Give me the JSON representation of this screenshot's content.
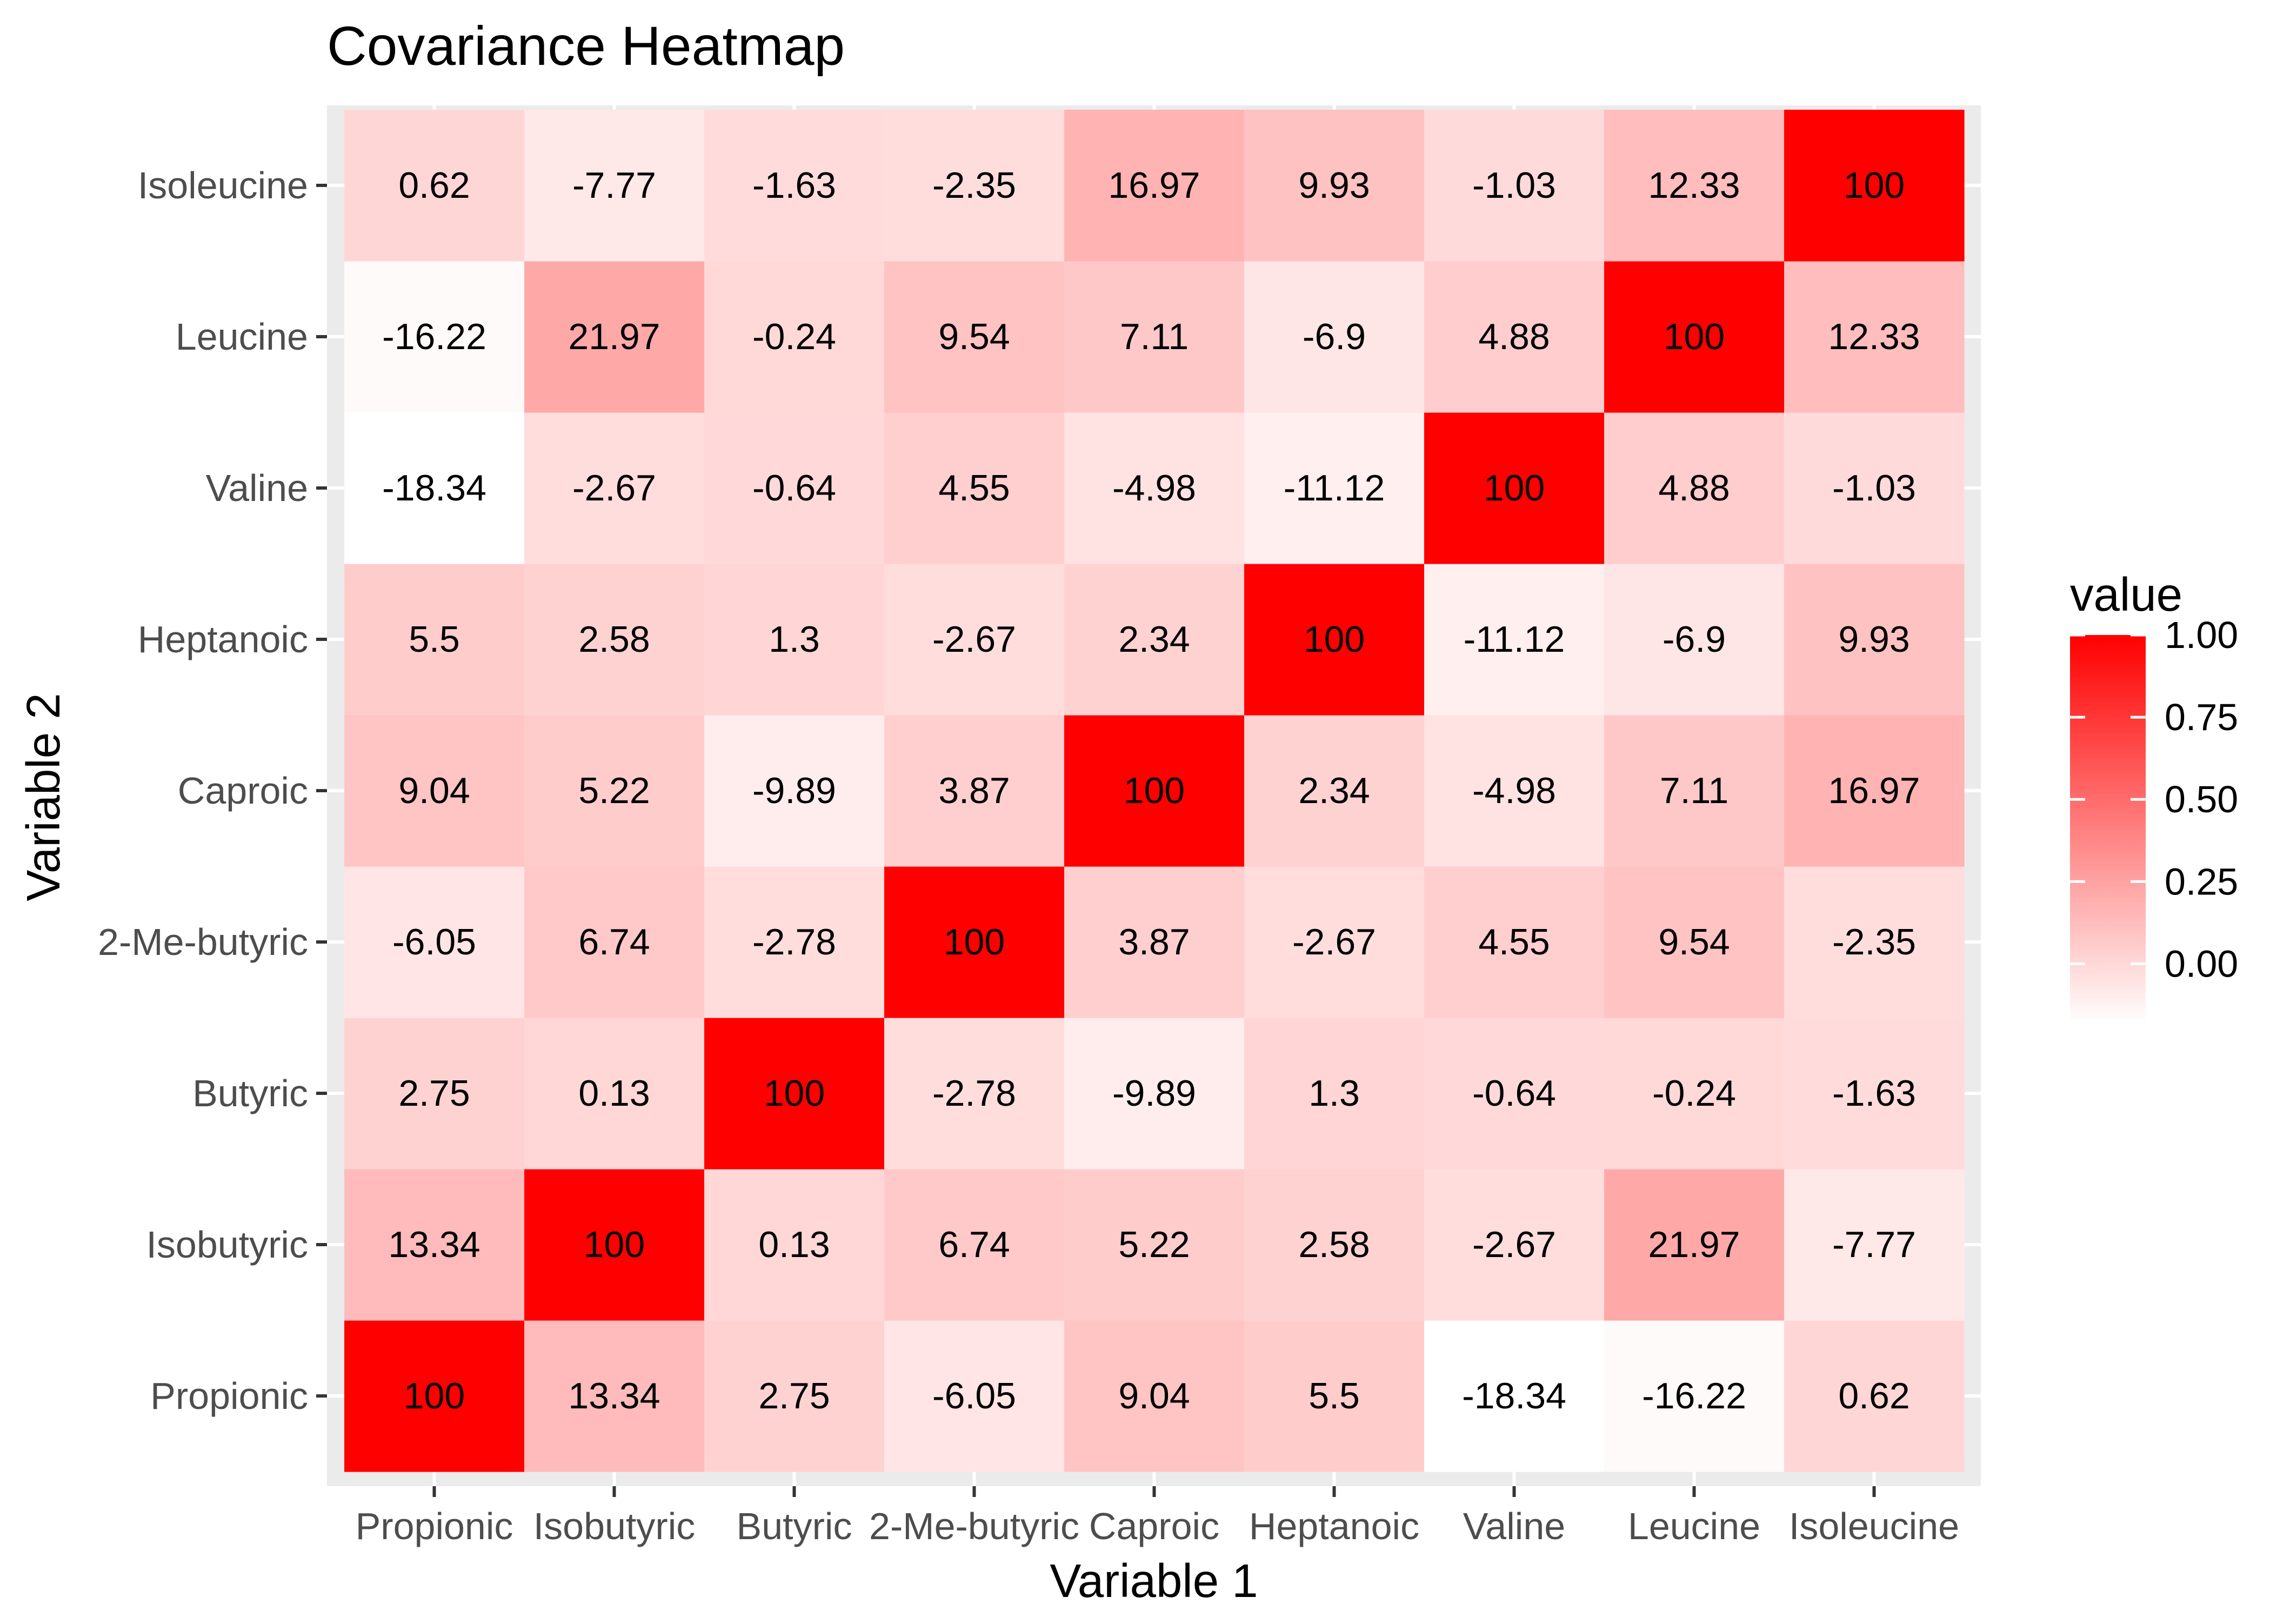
{
  "chart_data": {
    "type": "heatmap",
    "title": "Covariance Heatmap",
    "xlabel": "Variable 1",
    "ylabel": "Variable 2",
    "x_categories": [
      "Propionic",
      "Isobutyric",
      "Butyric",
      "2-Me-butyric",
      "Caproic",
      "Heptanoic",
      "Valine",
      "Leucine",
      "Isoleucine"
    ],
    "y_categories": [
      "Propionic",
      "Isobutyric",
      "Butyric",
      "2-Me-butyric",
      "Caproic",
      "Heptanoic",
      "Valine",
      "Leucine",
      "Isoleucine"
    ],
    "values": [
      [
        100,
        13.34,
        2.75,
        -6.05,
        9.04,
        5.5,
        -18.34,
        -16.22,
        0.62
      ],
      [
        13.34,
        100,
        0.13,
        6.74,
        5.22,
        2.58,
        -2.67,
        21.97,
        -7.77
      ],
      [
        2.75,
        0.13,
        100,
        -2.78,
        -9.89,
        1.3,
        -0.64,
        -0.24,
        -1.63
      ],
      [
        -6.05,
        6.74,
        -2.78,
        100,
        3.87,
        -2.67,
        4.55,
        9.54,
        -2.35
      ],
      [
        9.04,
        5.22,
        -9.89,
        3.87,
        100,
        2.34,
        -4.98,
        7.11,
        16.97
      ],
      [
        5.5,
        2.58,
        1.3,
        -2.67,
        2.34,
        100,
        -11.12,
        -6.9,
        9.93
      ],
      [
        -18.34,
        -2.67,
        -0.64,
        4.55,
        -4.98,
        -11.12,
        100,
        4.88,
        -1.03
      ],
      [
        -16.22,
        21.97,
        -0.24,
        9.54,
        7.11,
        -6.9,
        4.88,
        100,
        12.33
      ],
      [
        0.62,
        -7.77,
        -1.63,
        -2.35,
        16.97,
        9.93,
        -1.03,
        12.33,
        100
      ]
    ],
    "color_scale": {
      "low_color": "#ffffff",
      "high_color": "#ff0000",
      "fill_value_range": [
        -0.1834,
        1.0
      ]
    },
    "legend": {
      "title": "value",
      "position": "right",
      "ticks": [
        "1.00",
        "0.75",
        "0.50",
        "0.25",
        "0.00"
      ]
    },
    "panel_background": "#ebebeb",
    "grid": true
  }
}
